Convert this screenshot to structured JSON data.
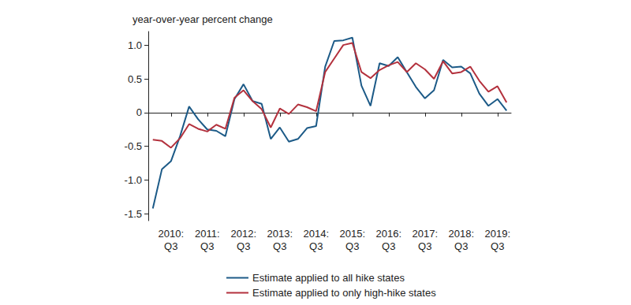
{
  "chart_data": {
    "type": "line",
    "title": "year-over-year percent change",
    "categories": [
      null,
      null,
      "2010:\nQ3",
      null,
      null,
      null,
      "2011:\nQ3",
      null,
      null,
      null,
      "2012:\nQ3",
      null,
      null,
      null,
      "2013:\nQ3",
      null,
      null,
      null,
      "2014:\nQ3",
      null,
      null,
      null,
      "2015:\nQ3",
      null,
      null,
      null,
      "2016:\nQ3",
      null,
      null,
      null,
      "2017:\nQ3",
      null,
      null,
      null,
      "2018:\nQ3",
      null,
      null,
      null,
      "2019:\nQ3",
      null
    ],
    "series": [
      {
        "name": "Estimate applied to all hike states",
        "color": "#1c5a87",
        "values": [
          -1.42,
          -0.84,
          -0.72,
          -0.35,
          0.09,
          -0.1,
          -0.25,
          -0.27,
          -0.35,
          0.2,
          0.42,
          0.17,
          0.13,
          -0.39,
          -0.22,
          -0.43,
          -0.39,
          -0.23,
          -0.2,
          0.68,
          1.06,
          1.07,
          1.11,
          0.4,
          0.1,
          0.73,
          0.69,
          0.82,
          0.6,
          0.38,
          0.21,
          0.33,
          0.78,
          0.67,
          0.68,
          0.58,
          0.28,
          0.1,
          0.2,
          0.03
        ]
      },
      {
        "name": "Estimate applied to only high-hike states",
        "color": "#b3313d",
        "values": [
          -0.4,
          -0.42,
          -0.52,
          -0.38,
          -0.17,
          -0.24,
          -0.28,
          -0.18,
          -0.24,
          0.22,
          0.33,
          0.17,
          0.05,
          -0.22,
          0.06,
          -0.02,
          0.12,
          0.08,
          0.02,
          0.6,
          0.8,
          1.0,
          1.03,
          0.6,
          0.51,
          0.63,
          0.7,
          0.75,
          0.6,
          0.73,
          0.64,
          0.5,
          0.76,
          0.58,
          0.6,
          0.68,
          0.47,
          0.31,
          0.39,
          0.15
        ]
      }
    ],
    "ylim": [
      -1.6,
      1.2
    ],
    "yticks": [
      -1.5,
      {
        "value": -1,
        "label": "-1.0"
      },
      -0.5,
      0,
      0.5,
      {
        "value": 1,
        "label": "1.0"
      }
    ],
    "grid": false,
    "legend": "bottom"
  }
}
